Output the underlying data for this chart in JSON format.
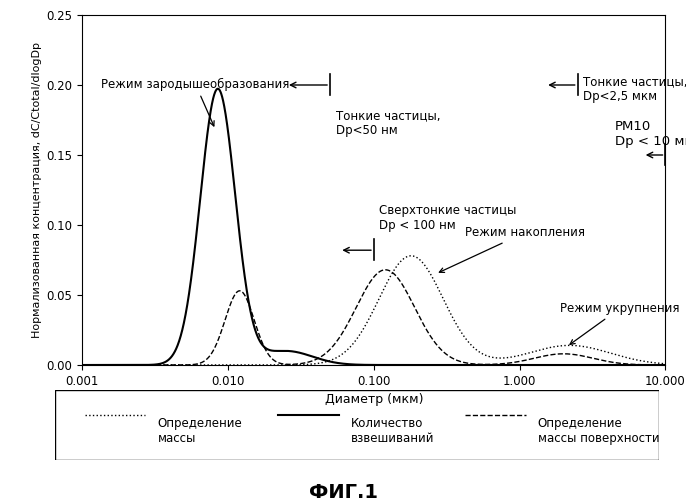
{
  "title": "ФИГ.1",
  "xlabel": "Диаметр (мкм)",
  "ylabel": "Нормализованная концентрация, dC/Ctotal/dlogDp",
  "ylim": [
    0,
    0.25
  ],
  "yticks": [
    0,
    0.05,
    0.1,
    0.15,
    0.2,
    0.25
  ],
  "xtick_labels": [
    "0.001",
    "0.010",
    "0.100",
    "1.000",
    "10.000"
  ],
  "background_color": "#ffffff",
  "legend_labels": [
    "Определение\nмассы",
    "Количество\nвзвешиваний",
    "Определение\nмассы поверхности"
  ],
  "curve_solid_params": [
    [
      0.0085,
      0.12,
      0.197
    ],
    [
      0.025,
      0.18,
      0.01
    ]
  ],
  "curve_dotted_params": [
    [
      0.18,
      0.22,
      0.078
    ],
    [
      2.2,
      0.28,
      0.014
    ]
  ],
  "curve_dashed_params": [
    [
      0.012,
      0.1,
      0.053
    ],
    [
      0.12,
      0.2,
      0.068
    ],
    [
      2.0,
      0.2,
      0.008
    ]
  ]
}
